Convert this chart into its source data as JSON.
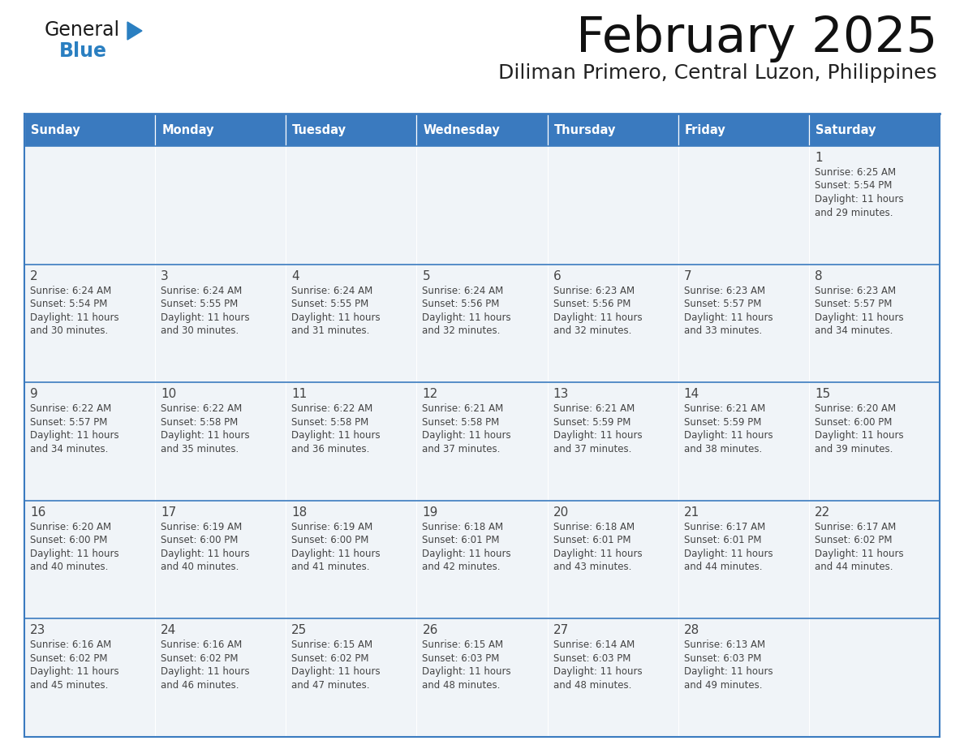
{
  "title": "February 2025",
  "subtitle": "Diliman Primero, Central Luzon, Philippines",
  "header_color": "#3a7abf",
  "header_text_color": "#ffffff",
  "cell_bg_color": "#f0f4f8",
  "border_color": "#3a7abf",
  "text_color": "#444444",
  "days_of_week": [
    "Sunday",
    "Monday",
    "Tuesday",
    "Wednesday",
    "Thursday",
    "Friday",
    "Saturday"
  ],
  "calendar_data": [
    [
      {
        "day": "",
        "sunrise": "",
        "sunset": "",
        "daylight": ""
      },
      {
        "day": "",
        "sunrise": "",
        "sunset": "",
        "daylight": ""
      },
      {
        "day": "",
        "sunrise": "",
        "sunset": "",
        "daylight": ""
      },
      {
        "day": "",
        "sunrise": "",
        "sunset": "",
        "daylight": ""
      },
      {
        "day": "",
        "sunrise": "",
        "sunset": "",
        "daylight": ""
      },
      {
        "day": "",
        "sunrise": "",
        "sunset": "",
        "daylight": ""
      },
      {
        "day": "1",
        "sunrise": "6:25 AM",
        "sunset": "5:54 PM",
        "daylight": "11 hours and 29 minutes."
      }
    ],
    [
      {
        "day": "2",
        "sunrise": "6:24 AM",
        "sunset": "5:54 PM",
        "daylight": "11 hours and 30 minutes."
      },
      {
        "day": "3",
        "sunrise": "6:24 AM",
        "sunset": "5:55 PM",
        "daylight": "11 hours and 30 minutes."
      },
      {
        "day": "4",
        "sunrise": "6:24 AM",
        "sunset": "5:55 PM",
        "daylight": "11 hours and 31 minutes."
      },
      {
        "day": "5",
        "sunrise": "6:24 AM",
        "sunset": "5:56 PM",
        "daylight": "11 hours and 32 minutes."
      },
      {
        "day": "6",
        "sunrise": "6:23 AM",
        "sunset": "5:56 PM",
        "daylight": "11 hours and 32 minutes."
      },
      {
        "day": "7",
        "sunrise": "6:23 AM",
        "sunset": "5:57 PM",
        "daylight": "11 hours and 33 minutes."
      },
      {
        "day": "8",
        "sunrise": "6:23 AM",
        "sunset": "5:57 PM",
        "daylight": "11 hours and 34 minutes."
      }
    ],
    [
      {
        "day": "9",
        "sunrise": "6:22 AM",
        "sunset": "5:57 PM",
        "daylight": "11 hours and 34 minutes."
      },
      {
        "day": "10",
        "sunrise": "6:22 AM",
        "sunset": "5:58 PM",
        "daylight": "11 hours and 35 minutes."
      },
      {
        "day": "11",
        "sunrise": "6:22 AM",
        "sunset": "5:58 PM",
        "daylight": "11 hours and 36 minutes."
      },
      {
        "day": "12",
        "sunrise": "6:21 AM",
        "sunset": "5:58 PM",
        "daylight": "11 hours and 37 minutes."
      },
      {
        "day": "13",
        "sunrise": "6:21 AM",
        "sunset": "5:59 PM",
        "daylight": "11 hours and 37 minutes."
      },
      {
        "day": "14",
        "sunrise": "6:21 AM",
        "sunset": "5:59 PM",
        "daylight": "11 hours and 38 minutes."
      },
      {
        "day": "15",
        "sunrise": "6:20 AM",
        "sunset": "6:00 PM",
        "daylight": "11 hours and 39 minutes."
      }
    ],
    [
      {
        "day": "16",
        "sunrise": "6:20 AM",
        "sunset": "6:00 PM",
        "daylight": "11 hours and 40 minutes."
      },
      {
        "day": "17",
        "sunrise": "6:19 AM",
        "sunset": "6:00 PM",
        "daylight": "11 hours and 40 minutes."
      },
      {
        "day": "18",
        "sunrise": "6:19 AM",
        "sunset": "6:00 PM",
        "daylight": "11 hours and 41 minutes."
      },
      {
        "day": "19",
        "sunrise": "6:18 AM",
        "sunset": "6:01 PM",
        "daylight": "11 hours and 42 minutes."
      },
      {
        "day": "20",
        "sunrise": "6:18 AM",
        "sunset": "6:01 PM",
        "daylight": "11 hours and 43 minutes."
      },
      {
        "day": "21",
        "sunrise": "6:17 AM",
        "sunset": "6:01 PM",
        "daylight": "11 hours and 44 minutes."
      },
      {
        "day": "22",
        "sunrise": "6:17 AM",
        "sunset": "6:02 PM",
        "daylight": "11 hours and 44 minutes."
      }
    ],
    [
      {
        "day": "23",
        "sunrise": "6:16 AM",
        "sunset": "6:02 PM",
        "daylight": "11 hours and 45 minutes."
      },
      {
        "day": "24",
        "sunrise": "6:16 AM",
        "sunset": "6:02 PM",
        "daylight": "11 hours and 46 minutes."
      },
      {
        "day": "25",
        "sunrise": "6:15 AM",
        "sunset": "6:02 PM",
        "daylight": "11 hours and 47 minutes."
      },
      {
        "day": "26",
        "sunrise": "6:15 AM",
        "sunset": "6:03 PM",
        "daylight": "11 hours and 48 minutes."
      },
      {
        "day": "27",
        "sunrise": "6:14 AM",
        "sunset": "6:03 PM",
        "daylight": "11 hours and 48 minutes."
      },
      {
        "day": "28",
        "sunrise": "6:13 AM",
        "sunset": "6:03 PM",
        "daylight": "11 hours and 49 minutes."
      },
      {
        "day": "",
        "sunrise": "",
        "sunset": "",
        "daylight": ""
      }
    ]
  ],
  "logo_text_general": "General",
  "logo_text_blue": "Blue",
  "logo_color_general": "#1a1a1a",
  "logo_color_blue": "#2a7fc1",
  "logo_triangle_color": "#2a7fc1"
}
